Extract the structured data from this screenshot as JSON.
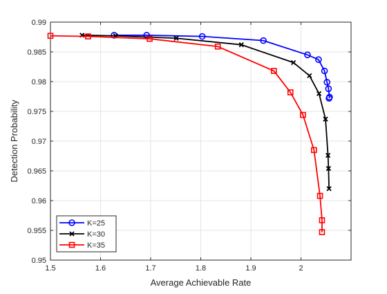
{
  "chart_data": {
    "type": "line",
    "title": "",
    "xlabel": "Average Achievable Rate",
    "ylabel": "Detection Probability",
    "xlim": [
      1.5,
      2.1
    ],
    "ylim": [
      0.95,
      0.99
    ],
    "xticks": [
      1.5,
      1.6,
      1.7,
      1.8,
      1.9,
      2.0
    ],
    "xtick_labels": [
      "1.5",
      "1.6",
      "1.7",
      "1.8",
      "1.9",
      "2"
    ],
    "yticks": [
      0.95,
      0.955,
      0.96,
      0.965,
      0.97,
      0.975,
      0.98,
      0.985,
      0.99
    ],
    "ytick_labels": [
      "0.95",
      "0.955",
      "0.96",
      "0.965",
      "0.97",
      "0.975",
      "0.98",
      "0.985",
      "0.99"
    ],
    "grid": true,
    "legend_position": "bottom-left",
    "series": [
      {
        "name": "K=25",
        "color": "#0000ff",
        "marker": "circle",
        "x": [
          1.627,
          1.692,
          1.803,
          1.925,
          2.013,
          2.035,
          2.047,
          2.052,
          2.055,
          2.057,
          2.056
        ],
        "y": [
          0.9878,
          0.9878,
          0.9876,
          0.9869,
          0.9845,
          0.9837,
          0.9818,
          0.9799,
          0.9788,
          0.9774,
          0.9772
        ]
      },
      {
        "name": "K=30",
        "color": "#000000",
        "marker": "x",
        "x": [
          1.563,
          1.63,
          1.751,
          1.881,
          1.985,
          2.017,
          2.036,
          2.049,
          2.054,
          2.055,
          2.056
        ],
        "y": [
          0.9878,
          0.9877,
          0.9873,
          0.9862,
          0.9832,
          0.981,
          0.978,
          0.9737,
          0.9676,
          0.9654,
          0.962
        ]
      },
      {
        "name": "K=35",
        "color": "#ff0000",
        "marker": "square",
        "x": [
          1.5,
          1.575,
          1.698,
          1.834,
          1.946,
          1.979,
          2.004,
          2.026,
          2.038,
          2.042,
          2.042
        ],
        "y": [
          0.9877,
          0.9876,
          0.9872,
          0.9859,
          0.9818,
          0.9782,
          0.9744,
          0.9685,
          0.9608,
          0.9567,
          0.9547
        ]
      }
    ]
  }
}
